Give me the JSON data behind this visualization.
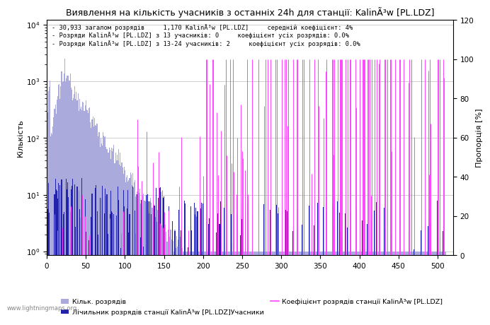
{
  "title": "Виявлення на кількість учасників з останніх 24h для станції: KalinÃ³w [PL.LDZ]",
  "annotation_lines": [
    "30,933 загалом розрядів     1,170 KalinÃ³w [PL.LDZ]     середній коефіцієнт: 4%",
    "Розряди KalinÃ³w [PL.LDZ] з 13 учасників: 0     коефіцієнт усіх розрядів: 0.0%",
    "Розряди KalinÃ³w [PL.LDZ] з 13-24 учасників: 2     коефіцієнт усіх розрядів: 0.0%"
  ],
  "ylabel_left": "Кількість",
  "ylabel_right": "Пропорція [%]",
  "watermark": "www.lightningmaps.org",
  "legend_all": "Кільк. розрядів",
  "legend_station": "Лічильник розрядів станції KalinÃ³w [PL.LDZ]Учасники",
  "legend_coeff": "Коефіцієнт розрядів станції KalinÃ³w [PL.LDZ]",
  "bar_color_all": "#aaaadd",
  "bar_color_station": "#2222aa",
  "line_color": "#ff44ff",
  "background_color": "#ffffff",
  "grid_color": "#bbbbbb",
  "xlim": [
    0,
    520
  ],
  "ylim_right": [
    0,
    120
  ],
  "right_ticks": [
    0,
    20,
    40,
    60,
    80,
    100,
    120
  ]
}
